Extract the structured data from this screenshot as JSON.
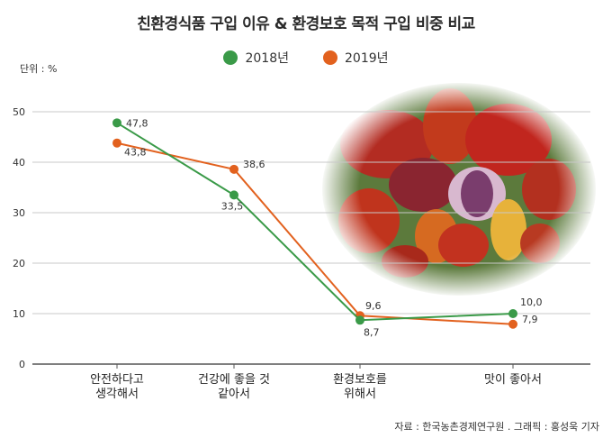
{
  "title": "친환경식품 구입 이유 & 환경보호 목적 구입 비중 비교",
  "unit_label": "단위 : %",
  "source": "자료 : 한국농촌경제연구원 . 그래픽 : 홍성욱 기자",
  "colors": {
    "series_2018": "#3a9a48",
    "series_2019": "#e2611e",
    "grid": "#c8c8c8",
    "axis": "#555555"
  },
  "chart_data": {
    "type": "line",
    "title": "친환경식품 구입 이유 & 환경보호 목적 구입 비중 비교",
    "xlabel": "",
    "ylabel": "",
    "unit": "%",
    "ylim": [
      0,
      50
    ],
    "yticks": [
      0,
      10,
      20,
      30,
      40,
      50
    ],
    "grid": true,
    "legend_position": "top-center",
    "categories": [
      [
        "안전하다고",
        "생각해서"
      ],
      [
        "건강에 좋을 것",
        "같아서"
      ],
      [
        "환경보호를",
        "위해서"
      ],
      [
        "맛이 좋아서"
      ]
    ],
    "series": [
      {
        "name": "2018년",
        "values": [
          47.8,
          33.5,
          8.7,
          10.0
        ],
        "labels": [
          "47,8",
          "33,5",
          "8,7",
          "10,0"
        ]
      },
      {
        "name": "2019년",
        "values": [
          43.8,
          38.6,
          9.6,
          7.9
        ],
        "labels": [
          "43,8",
          "38,6",
          "9,6",
          "7,9"
        ]
      }
    ]
  }
}
